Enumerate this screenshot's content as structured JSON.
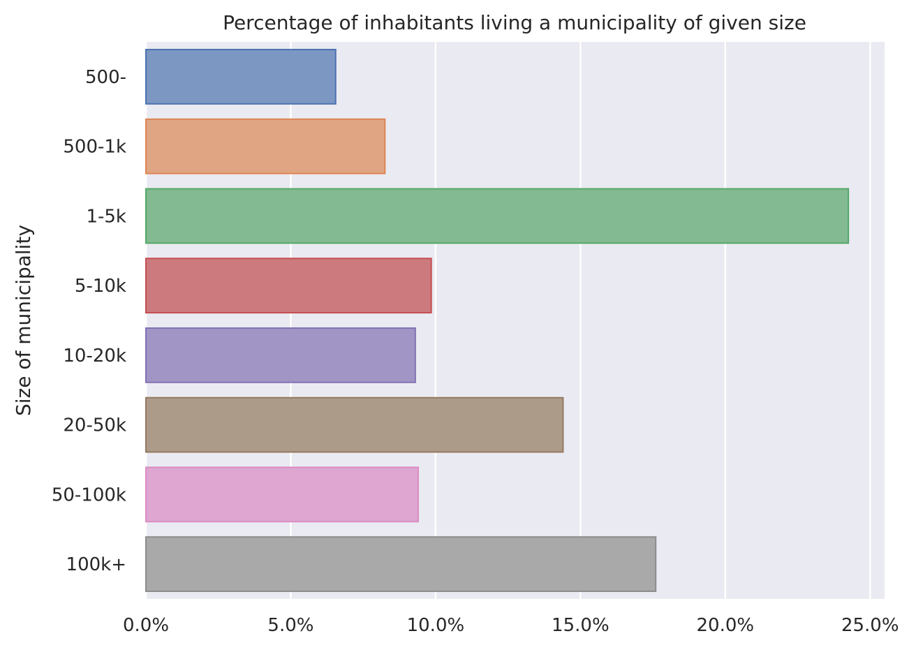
{
  "chart_data": {
    "type": "bar",
    "orientation": "horizontal",
    "title": "Percentage of inhabitants living a municipality of given size",
    "xlabel": "",
    "ylabel": "Size of municipality",
    "categories": [
      "500-",
      "500-1k",
      "1-5k",
      "5-10k",
      "10-20k",
      "20-50k",
      "50-100k",
      "100k+"
    ],
    "values": [
      6.55,
      8.25,
      24.25,
      9.85,
      9.3,
      14.4,
      9.4,
      17.6
    ],
    "value_unit": "%",
    "xlim": [
      0,
      25.5
    ],
    "xticks": [
      0,
      5,
      10,
      15,
      20,
      25
    ],
    "xtick_labels": [
      "0.0%",
      "5.0%",
      "10.0%",
      "15.0%",
      "20.0%",
      "25.0%"
    ],
    "grid": "vertical",
    "colors": {
      "background": "#eaeaf2",
      "grid": "#ffffff",
      "bars_fill": [
        "#7b97c2",
        "#e0a582",
        "#83ba91",
        "#cc7a7d",
        "#a195c5",
        "#ad9b8a",
        "#dea6d1",
        "#a9a9a9"
      ],
      "bars_edge": [
        "#4c72b0",
        "#dd8452",
        "#55a868",
        "#c44e52",
        "#8172b3",
        "#937860",
        "#da8bc3",
        "#8c8c8c"
      ]
    }
  }
}
